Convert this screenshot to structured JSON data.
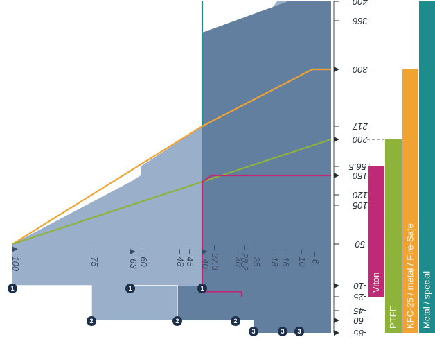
{
  "chart_data": {
    "type": "area",
    "title": "",
    "xlabel": "",
    "ylabel": "",
    "temp_axis": {
      "range": [
        -85,
        400
      ],
      "tick_labels": [
        {
          "value": 400,
          "label": "400"
        },
        {
          "value": 366,
          "label": "366"
        },
        {
          "value": 300,
          "label": "300"
        },
        {
          "value": 217,
          "label": "217"
        },
        {
          "value": 200,
          "label": "200"
        },
        {
          "value": 156.5,
          "label": "156.5"
        },
        {
          "value": 150,
          "label": "150"
        },
        {
          "value": 120,
          "label": "120"
        },
        {
          "value": 105,
          "label": "105"
        },
        {
          "value": 50,
          "label": "50"
        },
        {
          "value": -10,
          "label": "-10"
        },
        {
          "value": -25,
          "label": "-25"
        },
        {
          "value": -45,
          "label": "-45"
        },
        {
          "value": -60,
          "label": "-60"
        },
        {
          "value": -85,
          "label": "-85"
        }
      ],
      "arrow_ticks": [
        200,
        150,
        300,
        -10,
        -60,
        -85
      ]
    },
    "pressure_axis": {
      "range": [
        0,
        100
      ],
      "labels": [
        {
          "value": 100,
          "label": "100",
          "marker": "1"
        },
        {
          "value": 75,
          "label": "75"
        },
        {
          "value": 63,
          "label": "63",
          "marker": "1"
        },
        {
          "value": 60,
          "label": "60"
        },
        {
          "value": 48,
          "label": "48"
        },
        {
          "value": 45,
          "label": "45"
        },
        {
          "value": 40,
          "label": "40",
          "marker": "1"
        },
        {
          "value": 37.3,
          "label": "37.3"
        },
        {
          "value": 30,
          "label": "30"
        },
        {
          "value": 28.2,
          "label": "28.2"
        },
        {
          "value": 25,
          "label": "25"
        },
        {
          "value": 18,
          "label": "18"
        },
        {
          "value": 16,
          "label": "16"
        },
        {
          "value": 10,
          "label": "10"
        },
        {
          "value": 6,
          "label": "6"
        }
      ],
      "badges_2": [
        75,
        48,
        30
      ],
      "badges_3": [
        25,
        16,
        10
      ]
    },
    "series": [
      {
        "name": "Metal / special",
        "color": "#1e8c8c",
        "temp_range": [
          -85,
          400
        ],
        "points": [
          [
            40,
            217
          ],
          [
            40,
            400
          ]
        ]
      },
      {
        "name": "KFC-25 / metal / Fire-Safe",
        "color": "#f0a330",
        "temp_range": [
          -85,
          300
        ],
        "points": [
          [
            100,
            50
          ],
          [
            40,
            217
          ],
          [
            6,
            300
          ],
          [
            0,
            300
          ]
        ]
      },
      {
        "name": "PTFE",
        "color": "#8db33a",
        "temp_range": [
          -85,
          200
        ],
        "points": [
          [
            100,
            50
          ],
          [
            0,
            200
          ]
        ]
      },
      {
        "name": "Viton",
        "color": "#be2a75",
        "temp_range": [
          -25,
          156.5
        ],
        "points": [
          [
            28.2,
            -25
          ],
          [
            28.2,
            -18
          ],
          [
            40,
            -18
          ],
          [
            40,
            140
          ],
          [
            37.3,
            150
          ],
          [
            0,
            150
          ]
        ]
      }
    ],
    "regions": [
      {
        "marker": "1",
        "color": "#627f9f"
      },
      {
        "marker": "2",
        "color": "#9aafc9"
      },
      {
        "marker": "3",
        "color": "#b5c4d8"
      }
    ]
  }
}
